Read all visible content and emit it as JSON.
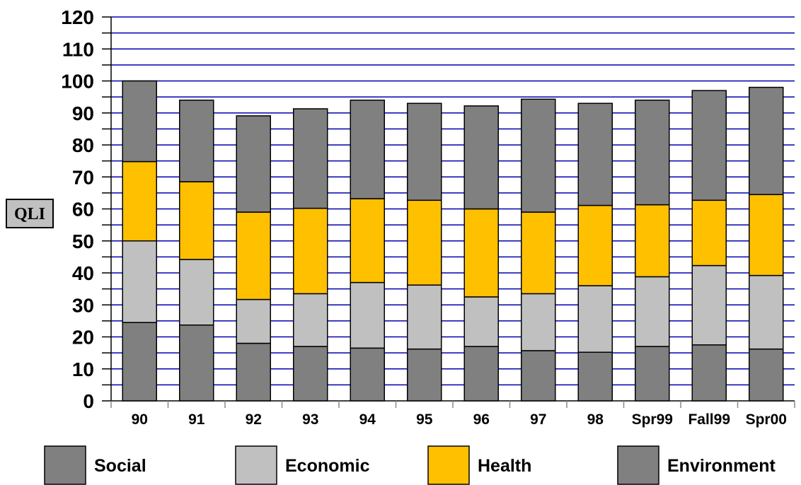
{
  "chart_data": {
    "type": "bar",
    "stacked": true,
    "ylabel": "QLI",
    "ylim": [
      0,
      120
    ],
    "yticks": [
      0,
      10,
      20,
      30,
      40,
      50,
      60,
      70,
      80,
      90,
      100,
      110,
      120
    ],
    "grid": true,
    "legend_position": "bottom",
    "categories": [
      "90",
      "91",
      "92",
      "93",
      "94",
      "95",
      "96",
      "97",
      "98",
      "Spr99",
      "Fall99",
      "Spr00"
    ],
    "series": [
      {
        "name": "Social",
        "color": "#808080",
        "values": [
          24.5,
          23.7,
          18,
          17,
          16.5,
          16.2,
          17,
          15.7,
          15.2,
          17,
          17.5,
          16.2
        ]
      },
      {
        "name": "Economic",
        "color": "#c0c0c0",
        "values": [
          25.5,
          20.5,
          13.7,
          16.5,
          20.5,
          20,
          15.5,
          17.8,
          20.8,
          21.8,
          24.8,
          23
        ]
      },
      {
        "name": "Health",
        "color": "#ffc000",
        "values": [
          24.8,
          24.3,
          27.3,
          26.7,
          26.2,
          26.5,
          27.5,
          25.5,
          25.1,
          22.5,
          20.4,
          25.3
        ]
      },
      {
        "name": "Environment",
        "color": "#808080",
        "values": [
          25.2,
          25.5,
          30.1,
          31.1,
          30.8,
          30.3,
          32.2,
          35.3,
          31.9,
          32.7,
          34.3,
          33.5
        ]
      }
    ]
  }
}
